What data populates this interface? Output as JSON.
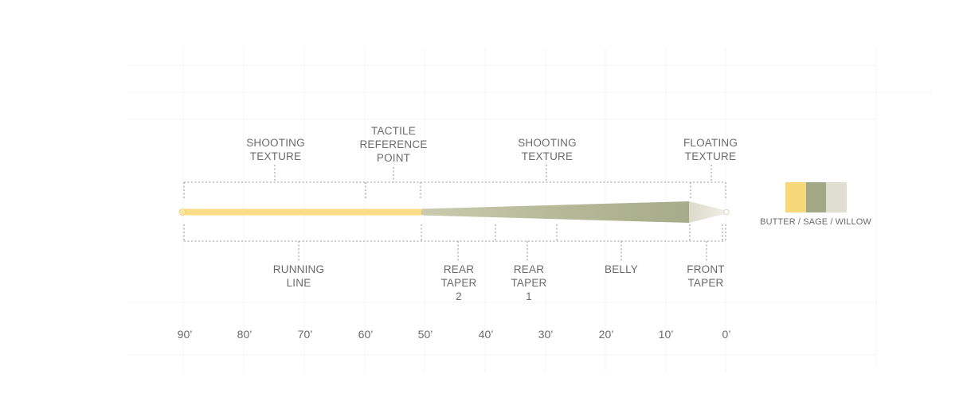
{
  "diagram": {
    "top_labels": [
      {
        "id": "shooting-texture-1",
        "text": "SHOOTING\nTEXTURE"
      },
      {
        "id": "tactile-reference-point",
        "text": "TACTILE\nREFERENCE\nPOINT"
      },
      {
        "id": "shooting-texture-2",
        "text": "SHOOTING\nTEXTURE"
      },
      {
        "id": "floating-texture",
        "text": "FLOATING\nTEXTURE"
      }
    ],
    "bottom_labels": [
      {
        "id": "running-line",
        "text": "RUNNING\nLINE"
      },
      {
        "id": "rear-taper-2",
        "text": "REAR\nTAPER\n2"
      },
      {
        "id": "rear-taper-1",
        "text": "REAR\nTAPER\n1"
      },
      {
        "id": "belly",
        "text": "BELLY"
      },
      {
        "id": "front-taper",
        "text": "FRONT\nTAPER"
      }
    ],
    "scale_ticks": [
      "90’",
      "80’",
      "70’",
      "60’",
      "50’",
      "40’",
      "30’",
      "20’",
      "10’",
      "0’"
    ]
  },
  "legend": {
    "label": "BUTTER / SAGE / WILLOW",
    "colors": [
      "#f6d77a",
      "#a2a886",
      "#e0ddd2"
    ]
  },
  "colors": {
    "running_line": "#f8de8a",
    "head": "#bfc2a4",
    "head_dark": "#a9ae8e",
    "tip": "#e7e4d8",
    "dotted": "#9a9a9a",
    "grid": "#f3f3f3"
  }
}
